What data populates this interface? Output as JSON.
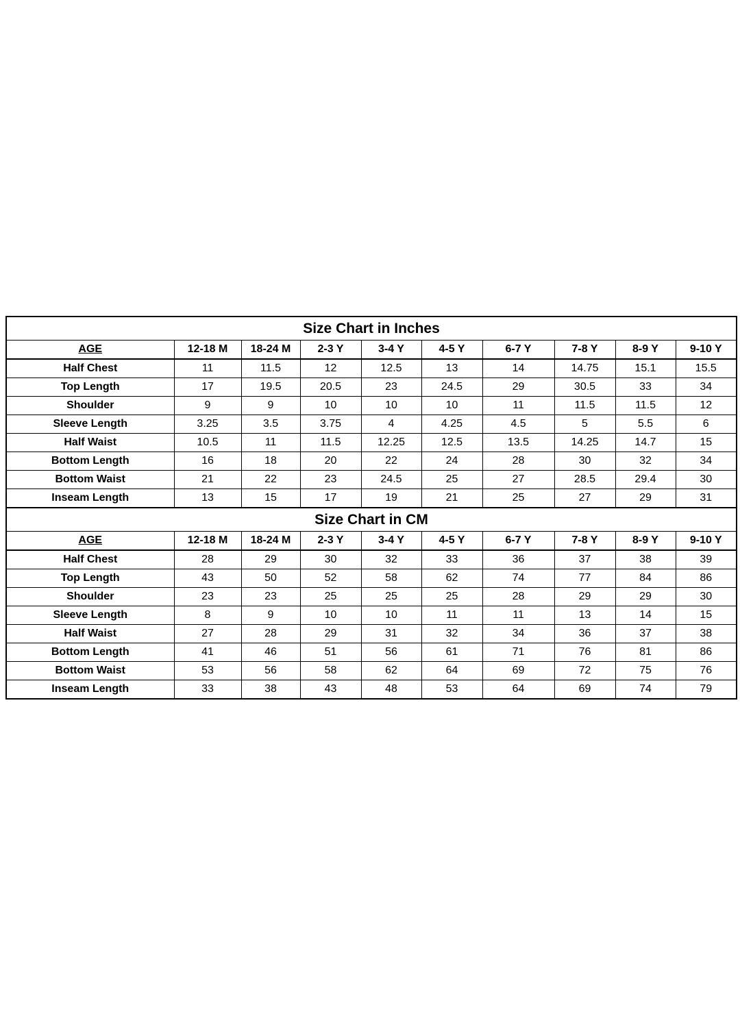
{
  "columns": [
    "AGE",
    "12-18 M",
    "18-24 M",
    "2-3 Y",
    "3-4 Y",
    "4-5 Y",
    "6-7 Y",
    "7-8 Y",
    "8-9 Y",
    "9-10 Y"
  ],
  "tables": [
    {
      "title": "Size Chart in Inches",
      "rows": [
        {
          "label": "Half Chest",
          "values": [
            "11",
            "11.5",
            "12",
            "12.5",
            "13",
            "14",
            "14.75",
            "15.1",
            "15.5"
          ]
        },
        {
          "label": "Top Length",
          "values": [
            "17",
            "19.5",
            "20.5",
            "23",
            "24.5",
            "29",
            "30.5",
            "33",
            "34"
          ]
        },
        {
          "label": "Shoulder",
          "values": [
            "9",
            "9",
            "10",
            "10",
            "10",
            "11",
            "11.5",
            "11.5",
            "12"
          ]
        },
        {
          "label": "Sleeve Length",
          "values": [
            "3.25",
            "3.5",
            "3.75",
            "4",
            "4.25",
            "4.5",
            "5",
            "5.5",
            "6"
          ]
        },
        {
          "label": "Half Waist",
          "values": [
            "10.5",
            "11",
            "11.5",
            "12.25",
            "12.5",
            "13.5",
            "14.25",
            "14.7",
            "15"
          ]
        },
        {
          "label": "Bottom Length",
          "values": [
            "16",
            "18",
            "20",
            "22",
            "24",
            "28",
            "30",
            "32",
            "34"
          ]
        },
        {
          "label": "Bottom Waist",
          "values": [
            "21",
            "22",
            "23",
            "24.5",
            "25",
            "27",
            "28.5",
            "29.4",
            "30"
          ]
        },
        {
          "label": "Inseam Length",
          "values": [
            "13",
            "15",
            "17",
            "19",
            "21",
            "25",
            "27",
            "29",
            "31"
          ]
        }
      ]
    },
    {
      "title": "Size Chart in CM",
      "rows": [
        {
          "label": "Half Chest",
          "values": [
            "28",
            "29",
            "30",
            "32",
            "33",
            "36",
            "37",
            "38",
            "39"
          ]
        },
        {
          "label": "Top Length",
          "values": [
            "43",
            "50",
            "52",
            "58",
            "62",
            "74",
            "77",
            "84",
            "86"
          ]
        },
        {
          "label": "Shoulder",
          "values": [
            "23",
            "23",
            "25",
            "25",
            "25",
            "28",
            "29",
            "29",
            "30"
          ]
        },
        {
          "label": "Sleeve Length",
          "values": [
            "8",
            "9",
            "10",
            "10",
            "11",
            "11",
            "13",
            "14",
            "15"
          ]
        },
        {
          "label": "Half Waist",
          "values": [
            "27",
            "28",
            "29",
            "31",
            "32",
            "34",
            "36",
            "37",
            "38"
          ]
        },
        {
          "label": "Bottom Length",
          "values": [
            "41",
            "46",
            "51",
            "56",
            "61",
            "71",
            "76",
            "81",
            "86"
          ]
        },
        {
          "label": "Bottom Waist",
          "values": [
            "53",
            "56",
            "58",
            "62",
            "64",
            "69",
            "72",
            "75",
            "76"
          ]
        },
        {
          "label": "Inseam Length",
          "values": [
            "33",
            "38",
            "43",
            "48",
            "53",
            "64",
            "69",
            "74",
            "79"
          ]
        }
      ]
    }
  ]
}
